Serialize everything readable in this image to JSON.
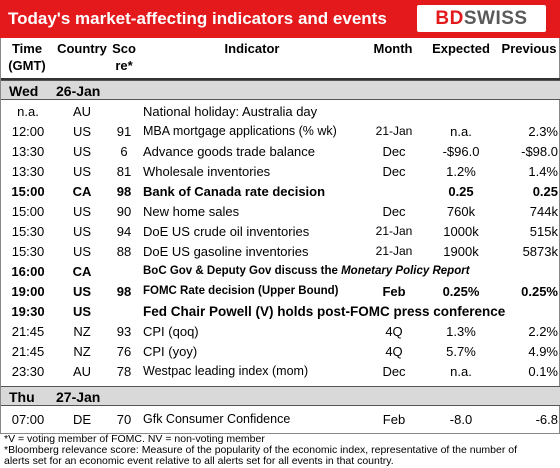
{
  "banner": {
    "title": "Today's market-affecting indicators and events",
    "brand_first": "BD",
    "brand_second": "SWISS",
    "accent": "#e3191c"
  },
  "headers": {
    "time": "Time (GMT)",
    "country": "Country",
    "score": "Sco re*",
    "indicator": "Indicator",
    "month": "Month",
    "expected": "Expected",
    "previous": "Previous"
  },
  "days": [
    {
      "day": "Wed",
      "date": "26-Jan",
      "rows": [
        {
          "time": "n.a.",
          "country": "AU",
          "score": "",
          "indicator": "National holiday:  Australia day",
          "month": "",
          "expected": "",
          "previous": "",
          "bold": false
        },
        {
          "time": "12:00",
          "country": "US",
          "score": "91",
          "indicator": "MBA mortgage applications (% wk)",
          "month": "21-Jan",
          "expected": "n.a.",
          "previous": "2.3%",
          "bold": false
        },
        {
          "time": "13:30",
          "country": "US",
          "score": "6",
          "indicator": "Advance goods trade balance",
          "month": "Dec",
          "expected": "-$96.0",
          "previous": "-$98.0",
          "bold": false
        },
        {
          "time": "13:30",
          "country": "US",
          "score": "81",
          "indicator": "Wholesale inventories",
          "month": "Dec",
          "expected": "1.2%",
          "previous": "1.4%",
          "bold": false
        },
        {
          "time": "15:00",
          "country": "CA",
          "score": "98",
          "indicator": "Bank of Canada rate decision",
          "month": "",
          "expected": "0.25",
          "previous": "0.25",
          "bold": true
        },
        {
          "time": "15:00",
          "country": "US",
          "score": "90",
          "indicator": "New home sales",
          "month": "Dec",
          "expected": "760k",
          "previous": "744k",
          "bold": false
        },
        {
          "time": "15:30",
          "country": "US",
          "score": "94",
          "indicator": "DoE US crude oil inventories",
          "month": "21-Jan",
          "expected": "1000k",
          "previous": "515k",
          "bold": false
        },
        {
          "time": "15:30",
          "country": "US",
          "score": "88",
          "indicator": "DoE US gasoline inventories",
          "month": "21-Jan",
          "expected": "1900k",
          "previous": "5873k",
          "bold": false
        },
        {
          "time": "16:00",
          "country": "CA",
          "score": "",
          "indicator": "BoC Gov & Deputy Gov discuss the ",
          "indicator_em": "Monetary Policy Report",
          "month": "",
          "expected": "",
          "previous": "",
          "bold": true
        },
        {
          "time": "19:00",
          "country": "US",
          "score": "98",
          "indicator": "FOMC Rate decision (Upper Bound)",
          "month": "Feb",
          "expected": "0.25%",
          "previous": "0.25%",
          "bold": true
        },
        {
          "time": "19:30",
          "country": "US",
          "score": "",
          "indicator": "Fed Chair Powell (V) holds post-FOMC press conference",
          "month": "",
          "expected": "",
          "previous": "",
          "bold": true
        },
        {
          "time": "21:45",
          "country": "NZ",
          "score": "93",
          "indicator": "CPI (qoq)",
          "month": "4Q",
          "expected": "1.3%",
          "previous": "2.2%",
          "bold": false
        },
        {
          "time": "21:45",
          "country": "NZ",
          "score": "76",
          "indicator": "CPI (yoy)",
          "month": "4Q",
          "expected": "5.7%",
          "previous": "4.9%",
          "bold": false
        },
        {
          "time": "23:30",
          "country": "AU",
          "score": "78",
          "indicator": "Westpac leading index (mom)",
          "month": "Dec",
          "expected": "n.a.",
          "previous": "0.1%",
          "bold": false
        }
      ]
    },
    {
      "day": "Thu",
      "date": "27-Jan",
      "rows": [
        {
          "time": "07:00",
          "country": "DE",
          "score": "70",
          "indicator": "Gfk Consumer Confidence",
          "month": "Feb",
          "expected": "-8.0",
          "previous": "-6.8",
          "bold": false
        }
      ]
    }
  ],
  "footnotes": [
    "*V = voting member of FOMC. NV = non-voting member",
    "*Bloomberg relevance score:  Measure of the popularity of the economic index, representative of the number of",
    "alerts set for an economic event relative to all alerts set for all events in that country."
  ]
}
